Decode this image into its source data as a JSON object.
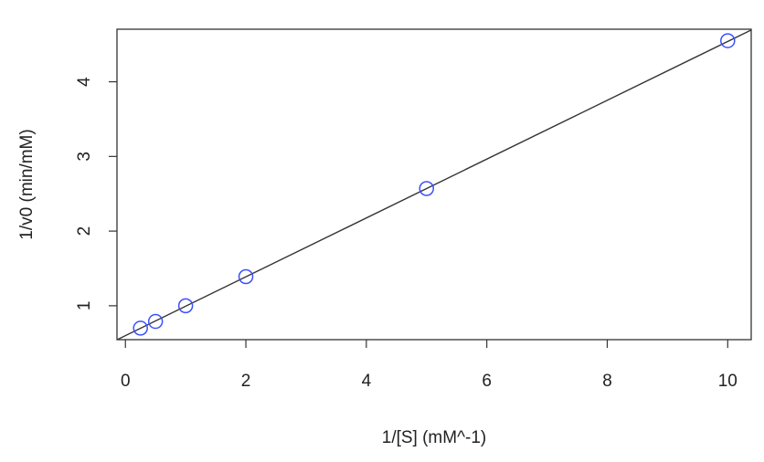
{
  "chart_data": {
    "type": "scatter",
    "x_label": "1/[S] (mM^-1)",
    "y_label": "1/v0 (min/mM)",
    "x": [
      0.25,
      0.5,
      1,
      2,
      5,
      10
    ],
    "values": [
      0.7,
      0.79,
      1.0,
      1.39,
      2.57,
      4.55
    ],
    "color": "#3a50ff",
    "fit": {
      "intercept": 0.6,
      "slope": 0.394,
      "color": "#333333"
    },
    "xlim": [
      -0.14,
      10.39
    ],
    "ylim": [
      0.546,
      4.704
    ],
    "xticks": [
      0,
      2,
      4,
      6,
      8,
      10
    ],
    "yticks": [
      1,
      2,
      3,
      4
    ],
    "grid": false
  }
}
